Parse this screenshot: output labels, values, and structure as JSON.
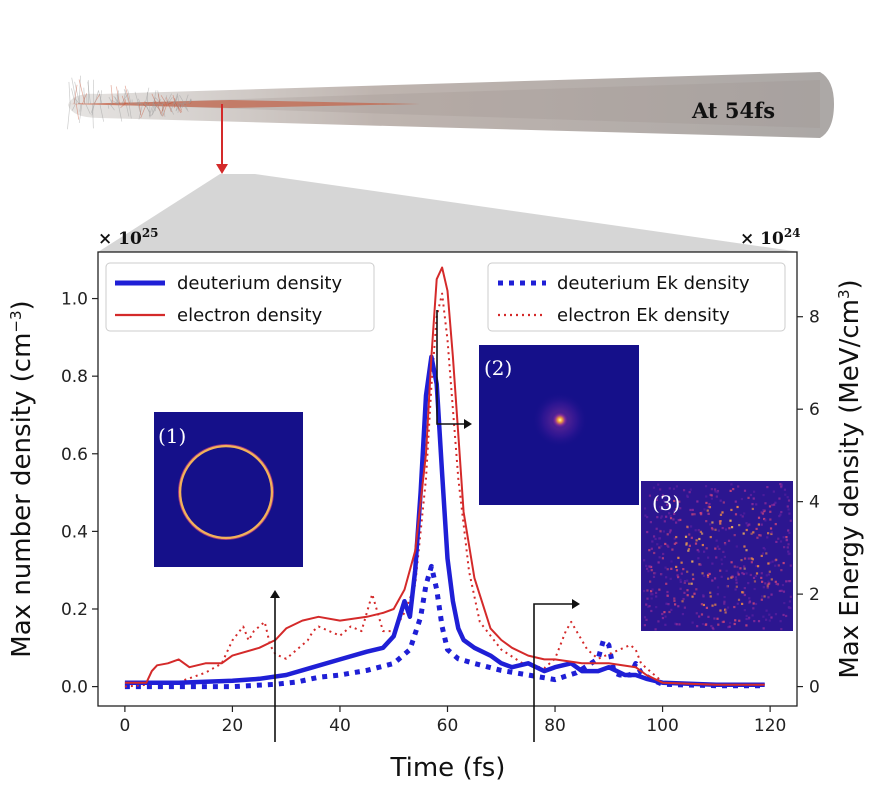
{
  "header": {
    "time_stamp": "At  54fs"
  },
  "colors": {
    "deuterium": "#1f1fd6",
    "electron": "#d42a2a",
    "inset_bg": "#15108a",
    "inset_ring": "#f2b25a"
  },
  "chart_data": {
    "type": "line",
    "xlabel": "Time (fs)",
    "ylabel_left": "Max number density (cm$^{-3}$)",
    "ylabel_left_text": "Max number density (cm",
    "ylabel_left_sup": "−3",
    "ylabel_left_close": ")",
    "ylabel_right_text": "Max Energy density (MeV/cm",
    "ylabel_right_sup": "3",
    "ylabel_right_close": ")",
    "left_multiplier": "× 10",
    "left_multiplier_exp": "25",
    "right_multiplier": "× 10",
    "right_multiplier_exp": "24",
    "xlim": [
      -5,
      125
    ],
    "ylim_left": [
      -0.05,
      1.12
    ],
    "ylim_right": [
      -0.42,
      9.4
    ],
    "xticks": [
      "0",
      "20",
      "40",
      "60",
      "80",
      "100",
      "120"
    ],
    "yticks_left": [
      "0.0",
      "0.2",
      "0.4",
      "0.6",
      "0.8",
      "1.0"
    ],
    "yticks_right": [
      "0",
      "2",
      "4",
      "6",
      "8"
    ],
    "series": [
      {
        "name": "deuterium density",
        "axis": "left",
        "style": "solid-thick",
        "x": [
          0,
          10,
          20,
          25,
          30,
          35,
          40,
          45,
          48,
          50,
          52,
          53,
          54,
          55,
          56,
          57,
          58,
          59,
          60,
          61,
          62,
          63,
          65,
          68,
          70,
          72,
          75,
          78,
          80,
          83,
          85,
          88,
          90,
          93,
          95,
          97,
          100,
          110,
          119
        ],
        "y": [
          0.01,
          0.01,
          0.015,
          0.02,
          0.03,
          0.05,
          0.07,
          0.09,
          0.1,
          0.13,
          0.22,
          0.18,
          0.3,
          0.5,
          0.75,
          0.85,
          0.78,
          0.55,
          0.33,
          0.22,
          0.15,
          0.12,
          0.1,
          0.08,
          0.06,
          0.05,
          0.06,
          0.04,
          0.05,
          0.06,
          0.04,
          0.04,
          0.05,
          0.03,
          0.03,
          0.02,
          0.01,
          0.005,
          0.005
        ]
      },
      {
        "name": "electron density",
        "axis": "left",
        "style": "solid",
        "x": [
          0,
          4,
          5,
          6,
          8,
          10,
          12,
          15,
          18,
          20,
          25,
          28,
          30,
          33,
          36,
          40,
          45,
          48,
          50,
          52,
          54,
          56,
          57,
          58,
          59,
          60,
          61,
          62,
          63,
          65,
          68,
          70,
          72,
          75,
          78,
          80,
          85,
          90,
          95,
          97,
          100,
          110,
          119
        ],
        "y": [
          0.01,
          0.01,
          0.04,
          0.055,
          0.06,
          0.07,
          0.05,
          0.06,
          0.06,
          0.08,
          0.1,
          0.12,
          0.15,
          0.17,
          0.18,
          0.17,
          0.18,
          0.19,
          0.2,
          0.25,
          0.35,
          0.6,
          0.85,
          1.05,
          1.08,
          1.02,
          0.85,
          0.65,
          0.45,
          0.28,
          0.15,
          0.12,
          0.1,
          0.08,
          0.07,
          0.07,
          0.06,
          0.06,
          0.05,
          0.03,
          0.01,
          0.005,
          0.005
        ]
      },
      {
        "name": "deuterium Ek density",
        "axis": "right",
        "style": "dotted-thick",
        "x": [
          0,
          10,
          20,
          28,
          32,
          36,
          40,
          45,
          50,
          53,
          55,
          56,
          57,
          58,
          59,
          60,
          62,
          65,
          70,
          75,
          80,
          84,
          86,
          88,
          89,
          90,
          91,
          92,
          94,
          95,
          96,
          98,
          100,
          110,
          119
        ],
        "y": [
          0,
          0,
          0,
          0.05,
          0.1,
          0.2,
          0.25,
          0.35,
          0.5,
          0.8,
          1.5,
          2.2,
          2.6,
          2.1,
          1.3,
          0.8,
          0.6,
          0.5,
          0.35,
          0.25,
          0.15,
          0.3,
          0.45,
          0.6,
          1.0,
          0.9,
          0.3,
          0.25,
          0.25,
          0.5,
          0.3,
          0.15,
          0.05,
          0.02,
          0.02
        ]
      },
      {
        "name": "electron Ek density",
        "axis": "right",
        "style": "dotted",
        "x": [
          0,
          10,
          15,
          18,
          20,
          22,
          23,
          24,
          26,
          27,
          28,
          30,
          32,
          34,
          35,
          36,
          38,
          40,
          42,
          44,
          46,
          47,
          48,
          50,
          52,
          54,
          56,
          57,
          58,
          59,
          60,
          62,
          64,
          66,
          70,
          74,
          78,
          80,
          82,
          83,
          84,
          86,
          88,
          90,
          92,
          94,
          95,
          96,
          98,
          100,
          110,
          119
        ],
        "y": [
          0,
          0.1,
          0.3,
          0.5,
          1.0,
          1.3,
          1.0,
          1.2,
          1.4,
          0.9,
          0.7,
          0.6,
          0.8,
          1.0,
          1.2,
          1.3,
          1.2,
          1.1,
          1.3,
          1.2,
          2.0,
          1.6,
          1.2,
          1.2,
          1.6,
          2.2,
          4.5,
          6.5,
          8.0,
          8.5,
          7.5,
          4.5,
          2.5,
          1.4,
          0.8,
          0.5,
          0.4,
          0.6,
          1.2,
          1.4,
          1.2,
          0.8,
          0.6,
          0.7,
          0.8,
          0.9,
          0.8,
          0.5,
          0.3,
          0.1,
          0.05,
          0.05
        ]
      }
    ],
    "legend": [
      {
        "name": "deuterium density",
        "placement": "top-left"
      },
      {
        "name": "electron density",
        "placement": "top-left"
      },
      {
        "name": "deuterium Ek density",
        "placement": "top-right"
      },
      {
        "name": "electron Ek density",
        "placement": "top-right"
      }
    ],
    "insets": [
      {
        "label": "(1)",
        "pattern": "ring",
        "arrow_time": 27
      },
      {
        "label": "(2)",
        "pattern": "point",
        "arrow_time": 57
      },
      {
        "label": "(3)",
        "pattern": "speckle",
        "arrow_time": 76
      }
    ]
  }
}
